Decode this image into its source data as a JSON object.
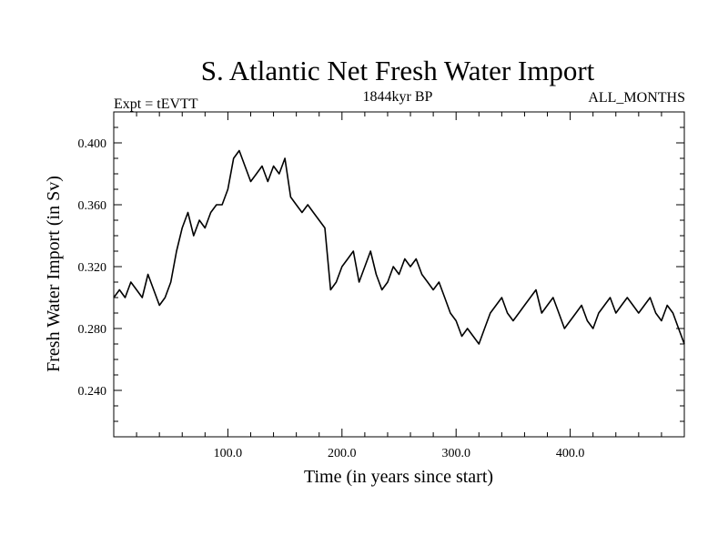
{
  "chart_data": {
    "type": "line",
    "title": "S. Atlantic Net Fresh Water Import",
    "subtitle_left": "Expt = tEVTT",
    "subtitle_center": "1844kyr BP",
    "subtitle_right": "ALL_MONTHS",
    "xlabel": "Time (in years since start)",
    "ylabel": "Fresh Water Import (in Sv)",
    "xlim": [
      0,
      500
    ],
    "ylim": [
      0.21,
      0.42
    ],
    "x_ticks": [
      100,
      200,
      300,
      400
    ],
    "x_tick_labels": [
      "100.0",
      "200.0",
      "300.0",
      "400.0"
    ],
    "y_ticks": [
      0.24,
      0.28,
      0.32,
      0.36,
      0.4
    ],
    "y_tick_labels": [
      "0.240",
      "0.280",
      "0.320",
      "0.360",
      "0.400"
    ],
    "grid": false,
    "series": [
      {
        "name": "S. Atlantic net fresh water import",
        "x_start": 0,
        "x_step": 5,
        "values": [
          0.3,
          0.305,
          0.3,
          0.31,
          0.305,
          0.3,
          0.315,
          0.305,
          0.295,
          0.3,
          0.31,
          0.33,
          0.345,
          0.355,
          0.34,
          0.35,
          0.345,
          0.355,
          0.36,
          0.36,
          0.37,
          0.39,
          0.395,
          0.385,
          0.375,
          0.38,
          0.385,
          0.375,
          0.385,
          0.38,
          0.39,
          0.365,
          0.36,
          0.355,
          0.36,
          0.355,
          0.35,
          0.345,
          0.305,
          0.31,
          0.32,
          0.325,
          0.33,
          0.31,
          0.32,
          0.33,
          0.315,
          0.305,
          0.31,
          0.32,
          0.315,
          0.325,
          0.32,
          0.325,
          0.315,
          0.31,
          0.305,
          0.31,
          0.3,
          0.29,
          0.285,
          0.275,
          0.28,
          0.275,
          0.27,
          0.28,
          0.29,
          0.295,
          0.3,
          0.29,
          0.285,
          0.29,
          0.295,
          0.3,
          0.305,
          0.29,
          0.295,
          0.3,
          0.29,
          0.28,
          0.285,
          0.29,
          0.295,
          0.285,
          0.28,
          0.29,
          0.295,
          0.3,
          0.29,
          0.295,
          0.3,
          0.295,
          0.29,
          0.295,
          0.3,
          0.29,
          0.285,
          0.295,
          0.29,
          0.28,
          0.27
        ]
      }
    ]
  }
}
